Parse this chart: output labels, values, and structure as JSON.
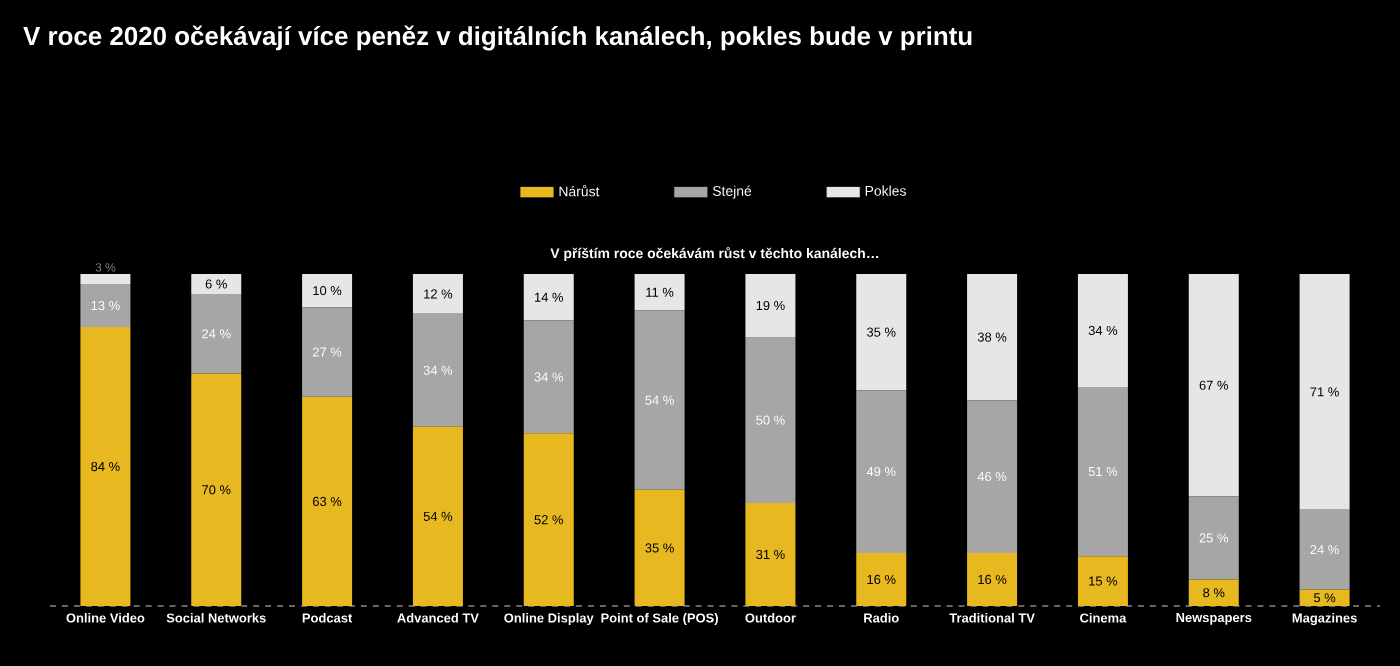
{
  "chart_data": {
    "type": "bar",
    "stacked": true,
    "title": "V roce 2020 očekávají více peněz v digitálních kanálech, pokles bude v printu",
    "subtitle": "V příštím roce očekávám růst v těchto kanálech…",
    "legend": "top",
    "categories": [
      "Online Video",
      "Social Networks",
      "Podcast",
      "Advanced TV",
      "Online Display",
      "Point of Sale (POS)",
      "Outdoor",
      "Radio",
      "Traditional TV",
      "Cinema",
      "Newspapers",
      "Magazines"
    ],
    "series": [
      {
        "name": "Nárůst",
        "color": "#e8b820",
        "values": [
          84,
          70,
          63,
          54,
          52,
          35,
          31,
          16,
          16,
          15,
          8,
          5
        ],
        "value_labels": [
          "84 %",
          "70 %",
          "63 %",
          "54 %",
          "52 %",
          "35 %",
          "31 %",
          "16 %",
          "16 %",
          "15 %",
          "8 %",
          "5 %"
        ]
      },
      {
        "name": "Stejné",
        "color": "#a6a6a6",
        "values": [
          13,
          24,
          27,
          34,
          34,
          54,
          50,
          49,
          46,
          51,
          25,
          24
        ],
        "value_labels": [
          "13 %",
          "24 %",
          "27 %",
          "34 %",
          "34 %",
          "54 %",
          "50 %",
          "49 %",
          "46 %",
          "51 %",
          "25 %",
          "24 %"
        ]
      },
      {
        "name": "Pokles",
        "color": "#e6e6e6",
        "values": [
          3,
          6,
          10,
          12,
          14,
          11,
          19,
          35,
          38,
          34,
          67,
          71
        ],
        "value_labels": [
          "3 %",
          "6 %",
          "10 %",
          "12 %",
          "14 %",
          "11 %",
          "19 %",
          "35 %",
          "38 %",
          "34 %",
          "67 %",
          "71 %"
        ]
      }
    ]
  }
}
